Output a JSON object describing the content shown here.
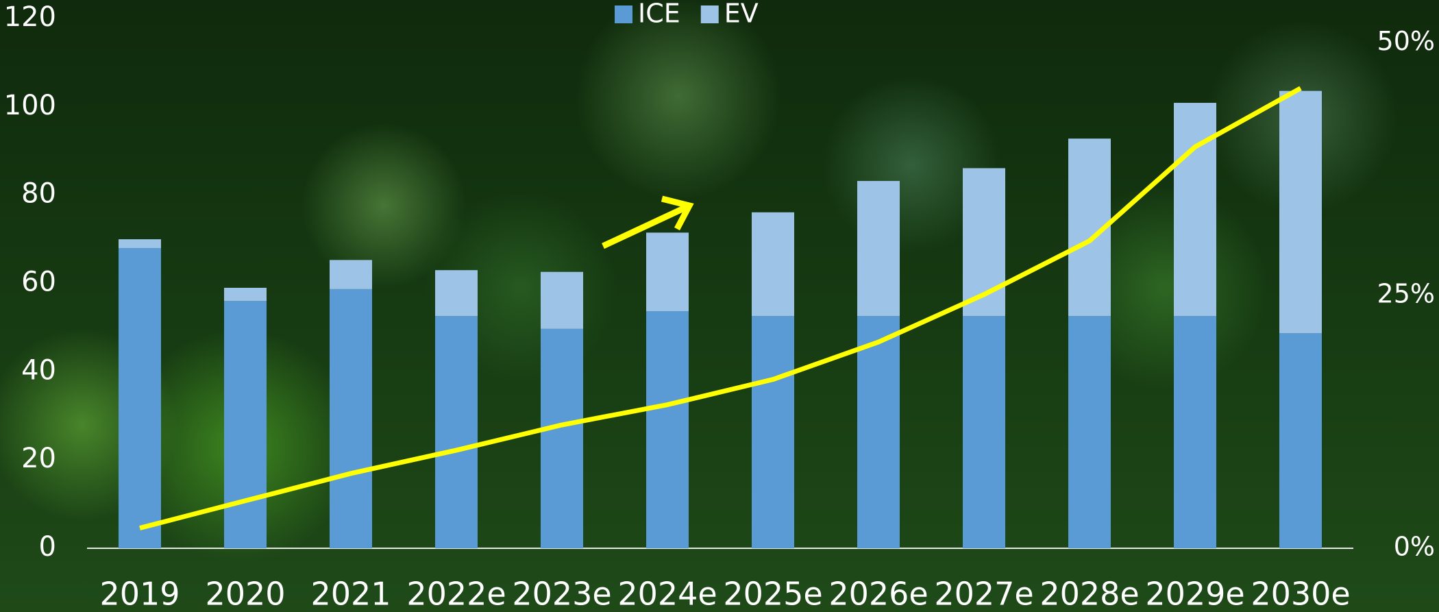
{
  "chart_data": {
    "type": "bar",
    "stacked": true,
    "categories": [
      "2019",
      "2020",
      "2021",
      "2022e",
      "2023e",
      "2024e",
      "2025e",
      "2026e",
      "2027e",
      "2028e",
      "2029e",
      "2030e"
    ],
    "series": [
      {
        "name": "ICE",
        "color": "#5b9bd5",
        "values": [
          68,
          56,
          58.7,
          52.6,
          49.7,
          53.7,
          52.6,
          52.6,
          52.6,
          52.6,
          52.6,
          48.7
        ]
      },
      {
        "name": "EV",
        "color": "#9dc3e6",
        "values": [
          2,
          3,
          6.6,
          10.4,
          12.9,
          17.8,
          23.5,
          30.6,
          33.5,
          40.2,
          48.3,
          54.9
        ]
      },
      {
        "type": "line",
        "axis": "y2",
        "color": "#ffff00",
        "values": [
          2.0,
          4.7,
          7.4,
          9.7,
          12.2,
          14.2,
          16.7,
          20.4,
          25.1,
          30.4,
          39.7,
          45.5
        ]
      }
    ],
    "ylim": [
      0,
      120
    ],
    "yticks": [
      0,
      20,
      40,
      60,
      80,
      100,
      120
    ],
    "y2lim": [
      0,
      52.4
    ],
    "y2ticks": [
      {
        "value": 0,
        "label": "0%"
      },
      {
        "value": 25,
        "label": "25%"
      },
      {
        "value": 50,
        "label": "50%"
      }
    ],
    "grid": false,
    "legend": "top"
  }
}
